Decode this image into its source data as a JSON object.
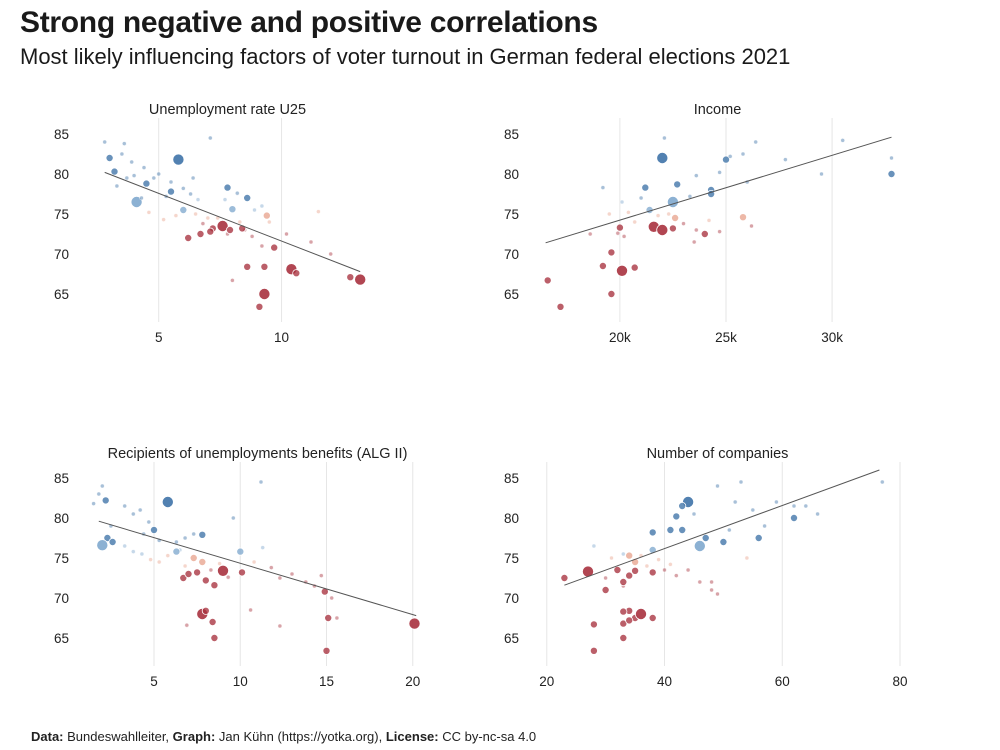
{
  "header": {
    "title": "Strong negative and positive correlations",
    "subtitle": "Most likely influencing factors of voter turnout in German federal elections 2021"
  },
  "caption": {
    "data_label": "Data:",
    "data_value": "Bundeswahlleiter,",
    "graph_label": "Graph:",
    "graph_value": "Jan Kühn (https://yotka.org),",
    "license_label": "License:",
    "license_value": "CC by-nc-sa 4.0"
  },
  "colors": {
    "high_turnout": "#3f73a8",
    "low_turnout": "#a8323f",
    "trend": "#555555",
    "grid": "#e6e6e6"
  },
  "chart_data": [
    {
      "type": "scatter",
      "title": "Unemployment rate U25",
      "xlim": [
        2,
        13.6
      ],
      "ylim": [
        62,
        86.5
      ],
      "xticks": [
        {
          "v": 5,
          "label": "5"
        },
        {
          "v": 10,
          "label": "10"
        }
      ],
      "yticks": [
        65,
        70,
        75,
        80,
        85
      ],
      "trend": [
        [
          2.8,
          80.2
        ],
        [
          13.2,
          67.8
        ]
      ],
      "points": [
        [
          2.8,
          84.0,
          1
        ],
        [
          3.0,
          82.0,
          2
        ],
        [
          3.2,
          80.3,
          2
        ],
        [
          3.3,
          78.5,
          1
        ],
        [
          3.5,
          82.5,
          1
        ],
        [
          3.6,
          83.8,
          1
        ],
        [
          3.9,
          81.5,
          1
        ],
        [
          4.0,
          79.8,
          1
        ],
        [
          4.1,
          76.5,
          3
        ],
        [
          4.5,
          78.8,
          2
        ],
        [
          4.3,
          77.0,
          1
        ],
        [
          4.8,
          79.5,
          1
        ],
        [
          5.0,
          80.0,
          1
        ],
        [
          5.3,
          77.2,
          1
        ],
        [
          5.5,
          77.8,
          2
        ],
        [
          5.8,
          81.8,
          3
        ],
        [
          6.0,
          78.2,
          1
        ],
        [
          6.3,
          77.5,
          1
        ],
        [
          6.6,
          76.8,
          1
        ],
        [
          7.1,
          84.5,
          1
        ],
        [
          7.4,
          74.5,
          1
        ],
        [
          7.8,
          78.3,
          2
        ],
        [
          8.2,
          77.6,
          1
        ],
        [
          8.6,
          77.0,
          2
        ],
        [
          9.2,
          76.0,
          1
        ],
        [
          4.6,
          75.2,
          1
        ],
        [
          5.2,
          74.3,
          1
        ],
        [
          5.7,
          74.8,
          1
        ],
        [
          6.0,
          75.5,
          2
        ],
        [
          6.5,
          75.0,
          1
        ],
        [
          6.8,
          73.8,
          1
        ],
        [
          7.0,
          74.5,
          1
        ],
        [
          7.2,
          73.2,
          2
        ],
        [
          7.6,
          73.5,
          3
        ],
        [
          7.8,
          72.5,
          1
        ],
        [
          8.0,
          75.6,
          2
        ],
        [
          8.3,
          74.0,
          1
        ],
        [
          8.5,
          73.0,
          1
        ],
        [
          8.8,
          72.2,
          1
        ],
        [
          9.2,
          71.0,
          1
        ],
        [
          9.4,
          74.8,
          2
        ],
        [
          6.2,
          72.0,
          2
        ],
        [
          6.7,
          72.5,
          2
        ],
        [
          7.1,
          72.8,
          2
        ],
        [
          7.9,
          73.0,
          2
        ],
        [
          8.4,
          73.2,
          2
        ],
        [
          8.6,
          68.4,
          2
        ],
        [
          9.3,
          68.4,
          2
        ],
        [
          9.7,
          70.8,
          2
        ],
        [
          9.1,
          63.4,
          2
        ],
        [
          9.3,
          65.0,
          3
        ],
        [
          10.4,
          68.1,
          3
        ],
        [
          10.6,
          67.6,
          2
        ],
        [
          12.8,
          67.1,
          2
        ],
        [
          13.2,
          66.8,
          3
        ],
        [
          8.0,
          66.7,
          1
        ],
        [
          3.7,
          79.5,
          1
        ],
        [
          4.4,
          80.8,
          1
        ],
        [
          5.5,
          79.0,
          1
        ],
        [
          6.4,
          79.5,
          1
        ],
        [
          7.7,
          76.8,
          1
        ],
        [
          8.9,
          75.5,
          1
        ],
        [
          9.5,
          74.0,
          1
        ],
        [
          10.2,
          72.5,
          1
        ],
        [
          11.2,
          71.5,
          1
        ],
        [
          11.5,
          75.3,
          1
        ],
        [
          12.0,
          70.0,
          1
        ]
      ]
    },
    {
      "type": "scatter",
      "title": "Income",
      "xlim": [
        16000,
        33200
      ],
      "ylim": [
        62,
        86.5
      ],
      "xticks": [
        {
          "v": 20000,
          "label": "20k"
        },
        {
          "v": 25000,
          "label": "25k"
        },
        {
          "v": 30000,
          "label": "30k"
        }
      ],
      "yticks": [
        65,
        70,
        75,
        80,
        85
      ],
      "trend": [
        [
          16500,
          71.4
        ],
        [
          32800,
          84.6
        ]
      ],
      "points": [
        [
          22000,
          82.0,
          3
        ],
        [
          21200,
          78.3,
          2
        ],
        [
          22700,
          78.7,
          2
        ],
        [
          23600,
          79.8,
          1
        ],
        [
          24300,
          78.0,
          2
        ],
        [
          24700,
          80.2,
          1
        ],
        [
          25000,
          81.8,
          2
        ],
        [
          25200,
          82.2,
          1
        ],
        [
          25800,
          82.5,
          1
        ],
        [
          26400,
          84.0,
          1
        ],
        [
          27800,
          81.8,
          1
        ],
        [
          29500,
          80.0,
          1
        ],
        [
          30500,
          84.2,
          1
        ],
        [
          32800,
          82.0,
          1
        ],
        [
          32800,
          80.0,
          2
        ],
        [
          22500,
          76.5,
          3
        ],
        [
          19200,
          78.3,
          1
        ],
        [
          21000,
          77.0,
          1
        ],
        [
          20400,
          75.2,
          1
        ],
        [
          23300,
          77.2,
          1
        ],
        [
          24300,
          77.5,
          2
        ],
        [
          22100,
          84.5,
          1
        ],
        [
          26000,
          79.0,
          1
        ],
        [
          19500,
          75.0,
          1
        ],
        [
          20100,
          76.5,
          1
        ],
        [
          20700,
          74.0,
          1
        ],
        [
          21400,
          75.5,
          2
        ],
        [
          21800,
          74.8,
          1
        ],
        [
          22300,
          75.0,
          1
        ],
        [
          22600,
          74.5,
          2
        ],
        [
          23000,
          73.8,
          1
        ],
        [
          23600,
          73.0,
          1
        ],
        [
          24200,
          74.2,
          1
        ],
        [
          24700,
          72.8,
          1
        ],
        [
          25800,
          74.6,
          2
        ],
        [
          26200,
          73.5,
          1
        ],
        [
          18600,
          72.5,
          1
        ],
        [
          19900,
          72.6,
          1
        ],
        [
          19200,
          68.5,
          2
        ],
        [
          19600,
          70.2,
          2
        ],
        [
          20100,
          67.9,
          3
        ],
        [
          20700,
          68.3,
          2
        ],
        [
          20000,
          73.3,
          2
        ],
        [
          21600,
          73.4,
          3
        ],
        [
          22000,
          73.0,
          3
        ],
        [
          22500,
          73.2,
          2
        ],
        [
          24000,
          72.5,
          2
        ],
        [
          19600,
          65.0,
          2
        ],
        [
          16600,
          66.7,
          2
        ],
        [
          17200,
          63.4,
          2
        ],
        [
          20200,
          72.2,
          1
        ],
        [
          23500,
          71.5,
          1
        ]
      ]
    },
    {
      "type": "scatter",
      "title": "Recipients of unemployments benefits (ALG II)",
      "xlim": [
        1.0,
        21.0
      ],
      "ylim": [
        62,
        86.5
      ],
      "xticks": [
        {
          "v": 5,
          "label": "5"
        },
        {
          "v": 10,
          "label": "10"
        },
        {
          "v": 15,
          "label": "15"
        },
        {
          "v": 20,
          "label": "20"
        }
      ],
      "yticks": [
        65,
        70,
        75,
        80,
        85
      ],
      "trend": [
        [
          1.8,
          79.6
        ],
        [
          20.2,
          67.8
        ]
      ],
      "points": [
        [
          1.5,
          81.8,
          1
        ],
        [
          1.8,
          83.0,
          1
        ],
        [
          2.0,
          84.0,
          1
        ],
        [
          2.2,
          82.2,
          2
        ],
        [
          2.3,
          77.5,
          2
        ],
        [
          2.5,
          79.0,
          1
        ],
        [
          2.0,
          76.6,
          3
        ],
        [
          2.6,
          77.0,
          2
        ],
        [
          3.3,
          81.5,
          1
        ],
        [
          3.8,
          80.5,
          1
        ],
        [
          4.2,
          81.0,
          1
        ],
        [
          4.7,
          79.5,
          1
        ],
        [
          5.0,
          78.5,
          2
        ],
        [
          5.3,
          77.2,
          1
        ],
        [
          5.8,
          82.0,
          3
        ],
        [
          6.3,
          77.0,
          1
        ],
        [
          6.8,
          77.5,
          1
        ],
        [
          7.3,
          78.0,
          1
        ],
        [
          7.8,
          77.9,
          2
        ],
        [
          9.6,
          80.0,
          1
        ],
        [
          11.2,
          84.5,
          1
        ],
        [
          11.3,
          76.3,
          1
        ],
        [
          6.5,
          76.0,
          1
        ],
        [
          4.4,
          78.0,
          1
        ],
        [
          3.3,
          76.5,
          1
        ],
        [
          3.8,
          75.8,
          1
        ],
        [
          4.3,
          75.5,
          1
        ],
        [
          4.8,
          74.8,
          1
        ],
        [
          5.3,
          74.5,
          1
        ],
        [
          5.8,
          75.3,
          1
        ],
        [
          6.3,
          75.8,
          2
        ],
        [
          6.8,
          74.0,
          1
        ],
        [
          7.3,
          75.0,
          2
        ],
        [
          7.8,
          74.5,
          2
        ],
        [
          8.3,
          73.5,
          1
        ],
        [
          8.8,
          74.3,
          1
        ],
        [
          9.3,
          72.6,
          1
        ],
        [
          10.0,
          75.8,
          2
        ],
        [
          10.8,
          74.5,
          1
        ],
        [
          11.8,
          73.8,
          1
        ],
        [
          12.3,
          72.5,
          1
        ],
        [
          13.0,
          73.0,
          1
        ],
        [
          13.8,
          72.0,
          1
        ],
        [
          14.3,
          71.5,
          1
        ],
        [
          14.7,
          72.8,
          1
        ],
        [
          15.3,
          70.0,
          1
        ],
        [
          15.6,
          67.5,
          1
        ],
        [
          6.7,
          72.5,
          2
        ],
        [
          7.0,
          73.0,
          2
        ],
        [
          7.5,
          73.2,
          2
        ],
        [
          8.0,
          72.2,
          2
        ],
        [
          8.5,
          71.6,
          2
        ],
        [
          9.0,
          73.4,
          3
        ],
        [
          10.1,
          73.2,
          2
        ],
        [
          7.8,
          68.0,
          3
        ],
        [
          8.0,
          68.4,
          2
        ],
        [
          8.4,
          67.0,
          2
        ],
        [
          8.5,
          65.0,
          2
        ],
        [
          10.6,
          68.5,
          1
        ],
        [
          12.3,
          66.5,
          1
        ],
        [
          14.9,
          70.8,
          2
        ],
        [
          15.1,
          67.5,
          2
        ],
        [
          15.0,
          63.4,
          2
        ],
        [
          20.1,
          66.8,
          3
        ],
        [
          6.9,
          66.6,
          1
        ]
      ]
    },
    {
      "type": "scatter",
      "title": "Number of companies",
      "xlim": [
        18,
        80
      ],
      "ylim": [
        62,
        86.5
      ],
      "xticks": [
        {
          "v": 20,
          "label": "20"
        },
        {
          "v": 40,
          "label": "40"
        },
        {
          "v": 60,
          "label": "60"
        },
        {
          "v": 80,
          "label": "80"
        }
      ],
      "yticks": [
        65,
        70,
        75,
        80,
        85
      ],
      "trend": [
        [
          23,
          71.6
        ],
        [
          76.5,
          86.0
        ]
      ],
      "points": [
        [
          44,
          82.0,
          3
        ],
        [
          43,
          81.5,
          2
        ],
        [
          42,
          80.2,
          2
        ],
        [
          45,
          80.5,
          1
        ],
        [
          41,
          78.5,
          2
        ],
        [
          38,
          78.2,
          2
        ],
        [
          43,
          78.5,
          2
        ],
        [
          46,
          76.5,
          3
        ],
        [
          47,
          77.5,
          2
        ],
        [
          50,
          77.0,
          2
        ],
        [
          51,
          78.5,
          1
        ],
        [
          53,
          84.5,
          1
        ],
        [
          49,
          84.0,
          1
        ],
        [
          52,
          82.0,
          1
        ],
        [
          55,
          81.0,
          1
        ],
        [
          56,
          77.5,
          2
        ],
        [
          57,
          79.0,
          1
        ],
        [
          62,
          80.0,
          2
        ],
        [
          62,
          81.5,
          1
        ],
        [
          64,
          81.5,
          1
        ],
        [
          66,
          80.5,
          1
        ],
        [
          77,
          84.5,
          1
        ],
        [
          59,
          82.0,
          1
        ],
        [
          54,
          75.0,
          1
        ],
        [
          28,
          76.5,
          1
        ],
        [
          31,
          75.0,
          1
        ],
        [
          33,
          75.5,
          1
        ],
        [
          35,
          74.5,
          2
        ],
        [
          36,
          75.3,
          1
        ],
        [
          37,
          74.0,
          1
        ],
        [
          38,
          76.0,
          2
        ],
        [
          39,
          74.8,
          1
        ],
        [
          40,
          73.5,
          1
        ],
        [
          41,
          74.2,
          1
        ],
        [
          42,
          72.8,
          1
        ],
        [
          44,
          73.5,
          1
        ],
        [
          46,
          72.0,
          1
        ],
        [
          48,
          71.0,
          1
        ],
        [
          49,
          70.5,
          1
        ],
        [
          30,
          72.5,
          1
        ],
        [
          33,
          71.5,
          1
        ],
        [
          23,
          72.5,
          2
        ],
        [
          27,
          73.3,
          3
        ],
        [
          30,
          71.0,
          2
        ],
        [
          32,
          73.5,
          2
        ],
        [
          33,
          72.0,
          2
        ],
        [
          34,
          72.8,
          2
        ],
        [
          34,
          75.3,
          2
        ],
        [
          35,
          73.4,
          2
        ],
        [
          38,
          73.2,
          2
        ],
        [
          34,
          68.4,
          2
        ],
        [
          33,
          68.3,
          2
        ],
        [
          35,
          67.5,
          2
        ],
        [
          36,
          68.0,
          3
        ],
        [
          38,
          67.5,
          2
        ],
        [
          28,
          66.7,
          2
        ],
        [
          33,
          66.8,
          2
        ],
        [
          34,
          67.2,
          2
        ],
        [
          33,
          65.0,
          2
        ],
        [
          28,
          63.4,
          2
        ],
        [
          48,
          72.0,
          1
        ]
      ]
    }
  ]
}
